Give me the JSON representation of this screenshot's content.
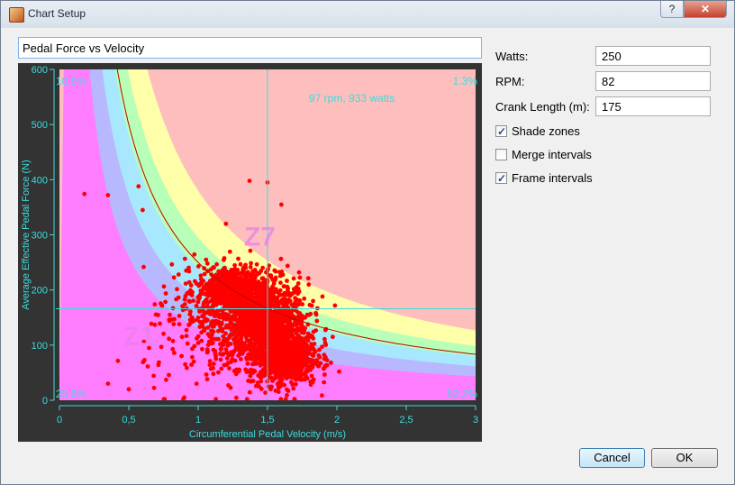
{
  "window": {
    "title": "Chart Setup",
    "help_label": "?",
    "close_label": "✕",
    "icon": "app-icon"
  },
  "chart_title_field": {
    "value": "Pedal Force vs Velocity"
  },
  "form": {
    "watts_label": "Watts:",
    "watts_value": "250",
    "rpm_label": "RPM:",
    "rpm_value": "82",
    "crank_label": "Crank Length (m):",
    "crank_value": "175",
    "shade_zones_label": "Shade zones",
    "shade_zones_checked": true,
    "merge_intervals_label": "Merge intervals",
    "merge_intervals_checked": false,
    "frame_intervals_label": "Frame intervals",
    "frame_intervals_checked": true
  },
  "buttons": {
    "cancel": "Cancel",
    "ok": "OK"
  },
  "chart_data": {
    "type": "scatter",
    "xlabel": "Circumferential Pedal Velocity (m/s)",
    "ylabel": "Average Effective Pedal Force (N)",
    "xlim": [
      0,
      3
    ],
    "ylim": [
      0,
      600
    ],
    "x_ticks": [
      "0",
      "0,5",
      "1",
      "1,5",
      "2",
      "2,5",
      "3"
    ],
    "y_ticks": [
      "0",
      "100",
      "200",
      "300",
      "400",
      "500",
      "600"
    ],
    "crosshair": {
      "x": 1.5,
      "y": 166
    },
    "annotation": "97 rpm, 933 watts",
    "quadrant_percentages": {
      "top_left": "10.9%",
      "top_right": "1.3%",
      "bottom_left": "25.6%",
      "bottom_right": "62.2%"
    },
    "zone_labels": {
      "z1": "Z1",
      "z7": "Z7"
    },
    "zone_colors": [
      "#ff7dff",
      "#b8b8ff",
      "#a8e8ff",
      "#b8ffb8",
      "#ffffaa",
      "#ffbebe"
    ],
    "zone_watts": [
      130,
      185,
      240,
      295,
      380
    ],
    "series_color": "#ff0000",
    "ftp_curve_watts": 250,
    "notable_points": [
      {
        "x": 0.18,
        "y": 374
      },
      {
        "x": 0.35,
        "y": 372
      },
      {
        "x": 0.57,
        "y": 388
      },
      {
        "x": 0.6,
        "y": 345
      },
      {
        "x": 1.37,
        "y": 398
      },
      {
        "x": 1.5,
        "y": 395
      },
      {
        "x": 1.6,
        "y": 355
      },
      {
        "x": 0.5,
        "y": 20
      },
      {
        "x": 0.9,
        "y": 5
      },
      {
        "x": 1.97,
        "y": 115
      },
      {
        "x": 0.35,
        "y": 30
      },
      {
        "x": 1.2,
        "y": 320
      }
    ],
    "clusters": [
      {
        "cx": 1.45,
        "cy": 140,
        "sx": 0.17,
        "sy": 40,
        "n": 1300
      },
      {
        "cx": 1.25,
        "cy": 200,
        "sx": 0.13,
        "sy": 22,
        "n": 700
      },
      {
        "cx": 1.62,
        "cy": 80,
        "sx": 0.12,
        "sy": 28,
        "n": 700
      },
      {
        "cx": 1.05,
        "cy": 120,
        "sx": 0.22,
        "sy": 55,
        "n": 160
      }
    ]
  }
}
